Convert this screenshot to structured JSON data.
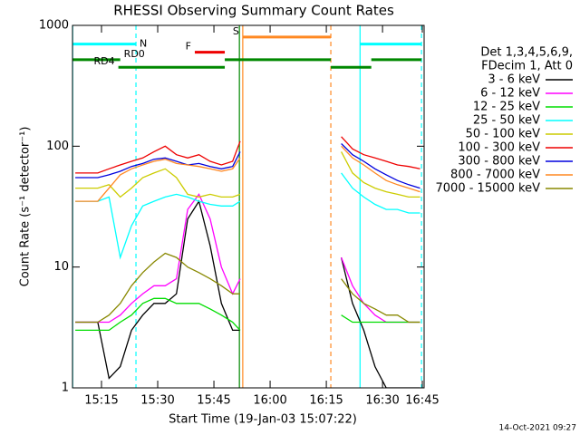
{
  "chart_data": {
    "type": "line",
    "title": "RHESSI Observing Summary Count Rates",
    "xlabel": "Start Time (19-Jan-03 15:07:22)",
    "ylabel": "Count Rate (s⁻¹ detector⁻¹)",
    "legend_header": [
      "Det 1,3,4,5,6,9,",
      "FDecim 1, Att 0"
    ],
    "footer": "14-Oct-2021 09:27",
    "legend": "right",
    "ylog": true,
    "xlim": [
      7.26,
      101.1
    ],
    "xticks": [
      {
        "value": 15,
        "label": "15:15"
      },
      {
        "value": 30,
        "label": "15:30"
      },
      {
        "value": 45,
        "label": "15:45"
      },
      {
        "value": 60,
        "label": "16:00"
      },
      {
        "value": 75,
        "label": "16:15"
      },
      {
        "value": 90,
        "label": "16:30"
      },
      {
        "value": 105,
        "label": "16:45"
      }
    ],
    "ylim": [
      1,
      1000
    ],
    "yticks": [
      1,
      10,
      100,
      1000
    ],
    "x": [
      8,
      11,
      14,
      17,
      20,
      23,
      26,
      29,
      32,
      35,
      38,
      41,
      44,
      47,
      50,
      52,
      65,
      79,
      82,
      85,
      88,
      91,
      94,
      97,
      100
    ],
    "series": [
      {
        "name": "3 - 6 keV",
        "color": "#000000",
        "values": [
          3.5,
          3.5,
          3.5,
          1.2,
          1.5,
          3,
          4,
          5,
          5,
          6,
          25,
          35,
          15,
          5,
          3,
          3,
          null,
          12,
          5,
          3,
          1.5,
          1,
          1,
          1,
          1
        ]
      },
      {
        "name": "6 - 12 keV",
        "color": "#ff00ff",
        "values": [
          3.5,
          3.5,
          3.5,
          3.5,
          4,
          5,
          6,
          7,
          7,
          8,
          30,
          40,
          25,
          10,
          6,
          8,
          null,
          12,
          7,
          5,
          4,
          3.5,
          3.5,
          3.5,
          3.5
        ]
      },
      {
        "name": "12 - 25 keV",
        "color": "#00dd00",
        "values": [
          3,
          3,
          3,
          3,
          3.5,
          4,
          5,
          5.5,
          5.5,
          5,
          5,
          5,
          4.5,
          4,
          3.5,
          3,
          null,
          4,
          3.5,
          3.5,
          3.5,
          3.5,
          3.5,
          3.5,
          3.5
        ]
      },
      {
        "name": "25 - 50 keV",
        "color": "#00ffff",
        "values": [
          35,
          35,
          35,
          38,
          12,
          22,
          32,
          35,
          38,
          40,
          38,
          35,
          33,
          32,
          32,
          35,
          null,
          60,
          45,
          38,
          33,
          30,
          30,
          28,
          28
        ]
      },
      {
        "name": "50 - 100 keV",
        "color": "#cccc00",
        "values": [
          45,
          45,
          45,
          48,
          38,
          45,
          55,
          60,
          65,
          55,
          40,
          38,
          40,
          38,
          38,
          40,
          null,
          90,
          60,
          50,
          45,
          42,
          40,
          38,
          38
        ]
      },
      {
        "name": "100 - 300 keV",
        "color": "#ee0000",
        "values": [
          60,
          60,
          60,
          65,
          70,
          75,
          80,
          90,
          100,
          85,
          80,
          85,
          75,
          70,
          75,
          110,
          null,
          120,
          95,
          85,
          80,
          75,
          70,
          68,
          65
        ]
      },
      {
        "name": "300 - 800 keV",
        "color": "#0000dd",
        "values": [
          55,
          55,
          55,
          58,
          62,
          68,
          72,
          78,
          80,
          75,
          70,
          72,
          68,
          65,
          68,
          90,
          null,
          105,
          85,
          75,
          65,
          58,
          52,
          48,
          45
        ]
      },
      {
        "name": "800 - 7000 keV",
        "color": "#ff8822",
        "values": [
          35,
          35,
          35,
          45,
          58,
          65,
          70,
          75,
          78,
          72,
          70,
          68,
          65,
          62,
          65,
          80,
          null,
          100,
          80,
          70,
          60,
          52,
          48,
          45,
          42
        ]
      },
      {
        "name": "7000 - 15000 keV",
        "color": "#888800",
        "values": [
          3.5,
          3.5,
          3.5,
          4,
          5,
          7,
          9,
          11,
          13,
          12,
          10,
          9,
          8,
          7,
          6,
          6,
          null,
          8,
          6,
          5,
          4.5,
          4,
          4,
          3.5,
          3.5
        ]
      }
    ],
    "flags": [
      {
        "label": "N",
        "color": "#00ffff",
        "level": 700,
        "segments": [
          [
            7.26,
            24.2
          ],
          [
            84,
            100.4
          ]
        ],
        "lines": [
          7.3,
          84
        ],
        "dashed_lines": [
          24.2,
          100.4
        ]
      },
      {
        "label": "F",
        "color": "#ee0000",
        "level": 600,
        "segments": [
          [
            39.9,
            47.9
          ]
        ],
        "lines": [],
        "dashed_lines": []
      },
      {
        "label": "S",
        "color": "#ff8822",
        "level": 800,
        "segments": [
          [
            52.7,
            76.2
          ]
        ],
        "lines": [
          52.7
        ],
        "dashed_lines": [
          76.2
        ]
      },
      {
        "label": "RD0",
        "color": "#008800",
        "level": 520,
        "segments": [
          [
            7.26,
            20
          ],
          [
            47.9,
            76.2
          ],
          [
            87,
            100.4
          ]
        ],
        "lines": [
          51.8
        ],
        "dashed_lines": []
      },
      {
        "label": "RD4",
        "color": "#008800",
        "level": 450,
        "segments": [
          [
            19.5,
            47.9
          ],
          [
            76.2,
            87
          ]
        ],
        "lines": [],
        "dashed_lines": []
      }
    ]
  }
}
